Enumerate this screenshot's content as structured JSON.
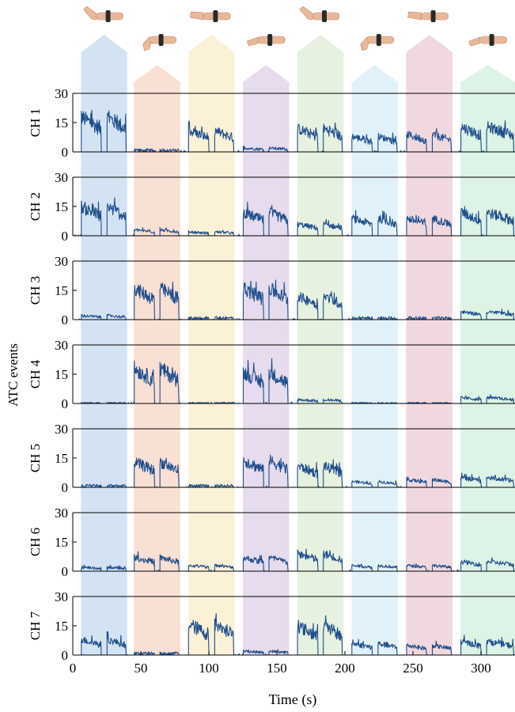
{
  "chart_data": {
    "type": "line",
    "xlabel": "Time (s)",
    "ylabel": "ATC events",
    "xlim": [
      0,
      325
    ],
    "ylim": [
      0,
      30
    ],
    "xticks": [
      0,
      50,
      100,
      150,
      200,
      250,
      300
    ],
    "yticks": [
      0,
      15,
      30
    ],
    "line_color": "#1f4e8c",
    "channels": [
      {
        "name": "CH 1",
        "gesture_levels": [
          18,
          1,
          11,
          2,
          12,
          8,
          9,
          13
        ],
        "tail_level": 8
      },
      {
        "name": "CH 2",
        "gesture_levels": [
          15,
          3,
          2,
          12,
          6,
          9,
          9,
          12
        ],
        "tail_level": 9
      },
      {
        "name": "CH 3",
        "gesture_levels": [
          2,
          16,
          1,
          16,
          12,
          1,
          1,
          4
        ],
        "tail_level": 1
      },
      {
        "name": "CH 4",
        "gesture_levels": [
          0,
          18,
          0,
          16,
          2,
          0,
          0,
          3
        ],
        "tail_level": 0
      },
      {
        "name": "CH 5",
        "gesture_levels": [
          1,
          13,
          1,
          14,
          11,
          3,
          4,
          5
        ],
        "tail_level": 1
      },
      {
        "name": "CH 6",
        "gesture_levels": [
          2,
          7,
          3,
          7,
          9,
          3,
          3,
          5
        ],
        "tail_level": 1
      },
      {
        "name": "CH 7",
        "gesture_levels": [
          8,
          1,
          16,
          2,
          15,
          6,
          5,
          7
        ],
        "tail_level": 1
      }
    ],
    "gestures": [
      {
        "start": 6,
        "end": 40,
        "color": "#c3d8ef",
        "row": "top",
        "icon": "hand-extension-icon"
      },
      {
        "start": 45,
        "end": 79,
        "color": "#f6d4c4",
        "row": "bottom",
        "icon": "hand-flexion-icon"
      },
      {
        "start": 85,
        "end": 119,
        "color": "#f8ecc8",
        "row": "top",
        "icon": "hand-supination-icon"
      },
      {
        "start": 125,
        "end": 159,
        "color": "#dccee6",
        "row": "bottom",
        "icon": "hand-pronation-icon"
      },
      {
        "start": 165,
        "end": 199,
        "color": "#dcebd2",
        "row": "top",
        "icon": "hand-grasp-icon"
      },
      {
        "start": 205,
        "end": 239,
        "color": "#d6ecf7",
        "row": "bottom",
        "icon": "hand-pinch-icon"
      },
      {
        "start": 245,
        "end": 279,
        "color": "#ecc9d3",
        "row": "top",
        "icon": "hand-point-icon"
      },
      {
        "start": 285,
        "end": 325,
        "color": "#cfeedb",
        "row": "bottom",
        "icon": "hand-open-icon"
      }
    ]
  }
}
